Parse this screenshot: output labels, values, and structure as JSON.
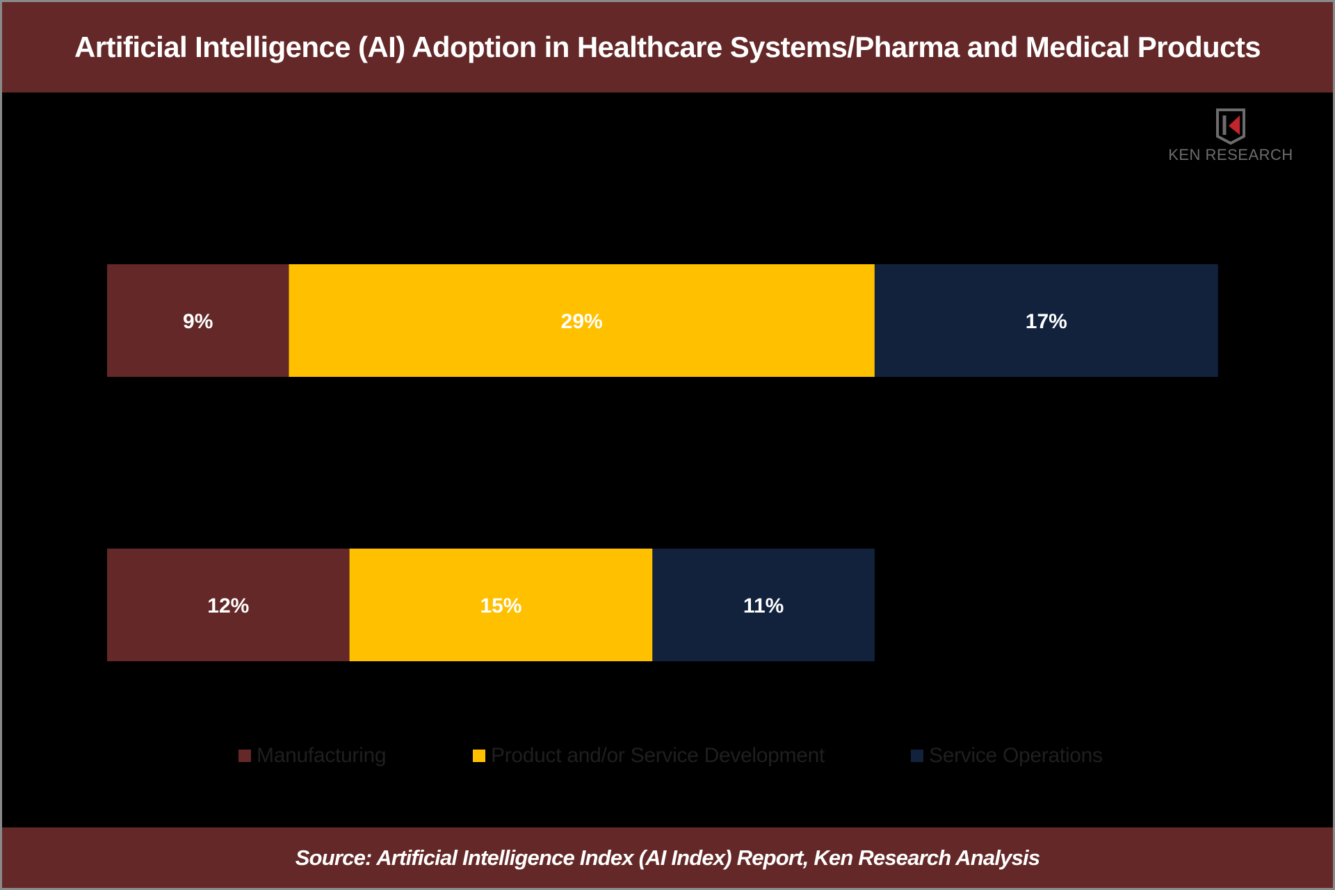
{
  "header": {
    "title": "Artificial Intelligence (AI) Adoption in Healthcare Systems/Pharma and Medical Products"
  },
  "logo": {
    "text": "KEN RESEARCH",
    "icon": "ken-research-k-icon"
  },
  "footer": {
    "source": "Source: Artificial Intelligence Index (AI Index) Report, Ken Research Analysis"
  },
  "colors": {
    "manufacturing": "#632827",
    "product_service_development": "#FFC000",
    "service_operations": "#12223D",
    "header_bg": "#632827",
    "background": "#000000"
  },
  "chart_data": {
    "type": "bar",
    "orientation": "horizontal",
    "stacked": true,
    "title": "Artificial Intelligence (AI) Adoption in Healthcare Systems/Pharma and Medical Products",
    "categories": [
      "",
      ""
    ],
    "series": [
      {
        "name": "Manufacturing",
        "color": "#632827",
        "values": [
          9,
          12
        ],
        "labels": [
          "9%",
          "12%"
        ]
      },
      {
        "name": "Product and/or Service Development",
        "color": "#FFC000",
        "values": [
          29,
          15
        ],
        "labels": [
          "29%",
          "15%"
        ]
      },
      {
        "name": "Service Operations",
        "color": "#12223D",
        "values": [
          17,
          11
        ],
        "labels": [
          "17%",
          "11%"
        ]
      }
    ],
    "xlim": [
      0,
      55
    ],
    "grid": false,
    "legend_position": "bottom",
    "xlabel": "",
    "ylabel": ""
  }
}
